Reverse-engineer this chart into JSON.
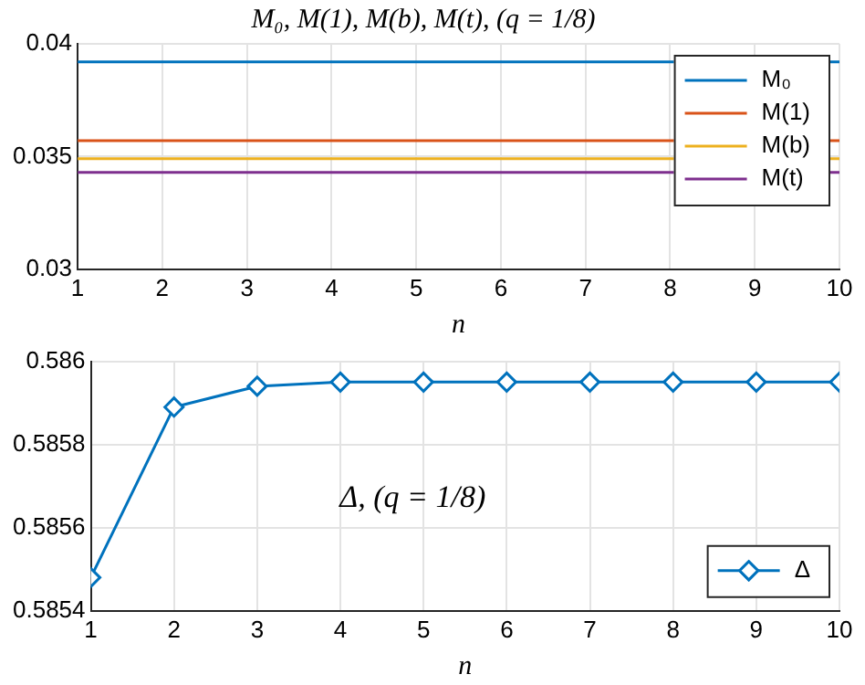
{
  "chart_data": [
    {
      "type": "line",
      "title": "M₀, M(1), M(b), M(t), (q = 1/8)",
      "xlabel": "n",
      "x": [
        1,
        2,
        3,
        4,
        5,
        6,
        7,
        8,
        9,
        10
      ],
      "series": [
        {
          "name": "M₀",
          "color": "#0072bd",
          "values": [
            0.0392,
            0.0392,
            0.0392,
            0.0392,
            0.0392,
            0.0392,
            0.0392,
            0.0392,
            null,
            0.0392
          ]
        },
        {
          "name": "M(1)",
          "color": "#d95319",
          "values": [
            0.0357,
            0.0357,
            0.0357,
            0.0357,
            0.0357,
            0.0357,
            0.0357,
            0.0357,
            null,
            0.0357
          ]
        },
        {
          "name": "M(b)",
          "color": "#edb120",
          "values": [
            0.0349,
            0.0349,
            0.0349,
            0.0349,
            0.0349,
            0.0349,
            0.0349,
            0.0349,
            null,
            0.0349
          ]
        },
        {
          "name": "M(t)",
          "color": "#7e2f8e",
          "values": [
            0.0343,
            0.0343,
            0.0343,
            0.0343,
            0.0343,
            0.0343,
            0.0343,
            0.0343,
            null,
            0.0343
          ]
        }
      ],
      "xlim": [
        1,
        10
      ],
      "xticks": [
        1,
        2,
        3,
        4,
        5,
        6,
        7,
        8,
        9,
        10
      ],
      "ylim": [
        0.03,
        0.04
      ],
      "yticks": [
        0.03,
        0.035,
        0.04
      ],
      "grid": true,
      "legend": "top right",
      "marker": "none",
      "line_style": "solid"
    },
    {
      "type": "line",
      "xlabel": "n",
      "annotations": [
        "Δ, (q = 1/8)"
      ],
      "x": [
        1,
        2,
        3,
        4,
        5,
        6,
        7,
        8,
        9,
        10
      ],
      "series": [
        {
          "name": "Δ",
          "color": "#0072bd",
          "values": [
            0.58548,
            0.58589,
            0.58594,
            0.58595,
            0.58595,
            0.58595,
            0.58595,
            0.58595,
            0.58595,
            0.58595
          ]
        }
      ],
      "xlim": [
        1,
        10
      ],
      "xticks": [
        1,
        2,
        3,
        4,
        5,
        6,
        7,
        8,
        9,
        10
      ],
      "ylim": [
        0.5854,
        0.586
      ],
      "yticks": [
        0.5854,
        0.5856,
        0.5858,
        0.586
      ],
      "grid": true,
      "legend": "bottom right",
      "marker": "diamond",
      "line_style": "solid"
    }
  ]
}
